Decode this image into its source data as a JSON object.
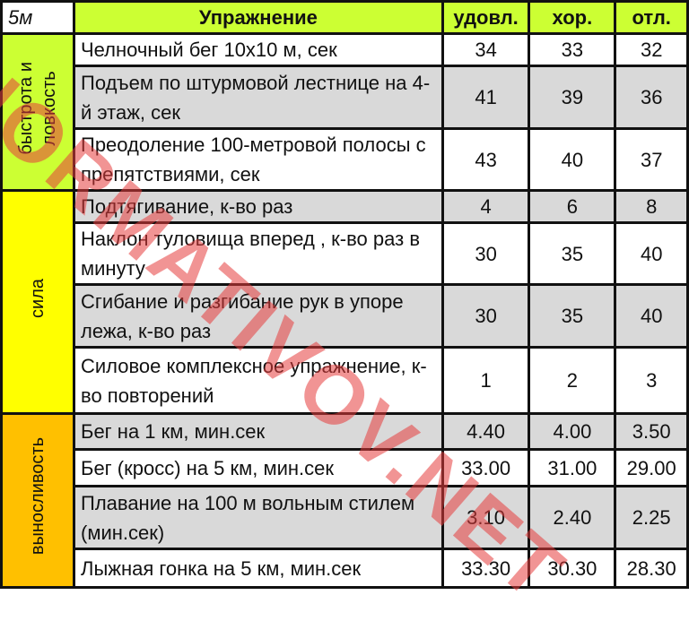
{
  "header": {
    "corner": "5м",
    "exercise": "Упражнение",
    "grades": [
      "удовл.",
      "хор.",
      "отл."
    ]
  },
  "categories": [
    {
      "label": "быстрота и\nловкость",
      "color": "#ccff33"
    },
    {
      "label": "сила",
      "color": "#ffff00"
    },
    {
      "label": "выносливость",
      "color": "#ffc000"
    }
  ],
  "rows": [
    {
      "exercise": "Челночный бег 10х10 м, сек",
      "v": [
        "34",
        "33",
        "32"
      ]
    },
    {
      "exercise": "Подъем по штурмовой лестнице на 4-й этаж, сек",
      "v": [
        "41",
        "39",
        "36"
      ]
    },
    {
      "exercise": "Преодоление 100-метровой полосы с препятствиями, сек",
      "v": [
        "43",
        "40",
        "37"
      ]
    },
    {
      "exercise": "Подтягивание, к-во раз",
      "v": [
        "4",
        "6",
        "8"
      ]
    },
    {
      "exercise": "Наклон туловища вперед , к-во раз в минуту",
      "v": [
        "30",
        "35",
        "40"
      ]
    },
    {
      "exercise": "Сгибание и разгибание рук в упоре лежа, к-во раз",
      "v": [
        "30",
        "35",
        "40"
      ]
    },
    {
      "exercise": "Силовое комплексное упражнение, к-во повторений",
      "v": [
        "1",
        "2",
        "3"
      ]
    },
    {
      "exercise": "Бег на 1 км, мин.сек",
      "v": [
        "4.40",
        "4.00",
        "3.50"
      ]
    },
    {
      "exercise": "Бег (кросс) на 5 км, мин.сек",
      "v": [
        "33.00",
        "31.00",
        "29.00"
      ]
    },
    {
      "exercise": "Плавание на 100 м вольным стилем (мин.сек)",
      "v": [
        "3.10",
        "2.40",
        "2.25"
      ]
    },
    {
      "exercise": "Лыжная гонка на 5 км, мин.сек",
      "v": [
        "33.30",
        "30.30",
        "28.30"
      ]
    }
  ],
  "watermark": "NORMATIVOV.NET"
}
